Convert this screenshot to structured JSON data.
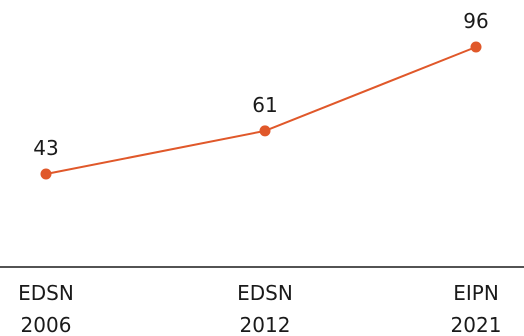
{
  "chart_data": {
    "type": "line",
    "categories": [
      [
        "EDSN",
        "2006"
      ],
      [
        "EDSN",
        "2012"
      ],
      [
        "EIPN",
        "2021"
      ]
    ],
    "series": [
      {
        "values": [
          43,
          61,
          96
        ]
      }
    ],
    "data_labels": [
      "43",
      "61",
      "96"
    ],
    "title": "",
    "xlabel": "",
    "ylabel": "",
    "grid": false,
    "colors": {
      "line": "#e0582a",
      "axis": "#1a1a1a",
      "text": "#1a1a1a"
    }
  }
}
